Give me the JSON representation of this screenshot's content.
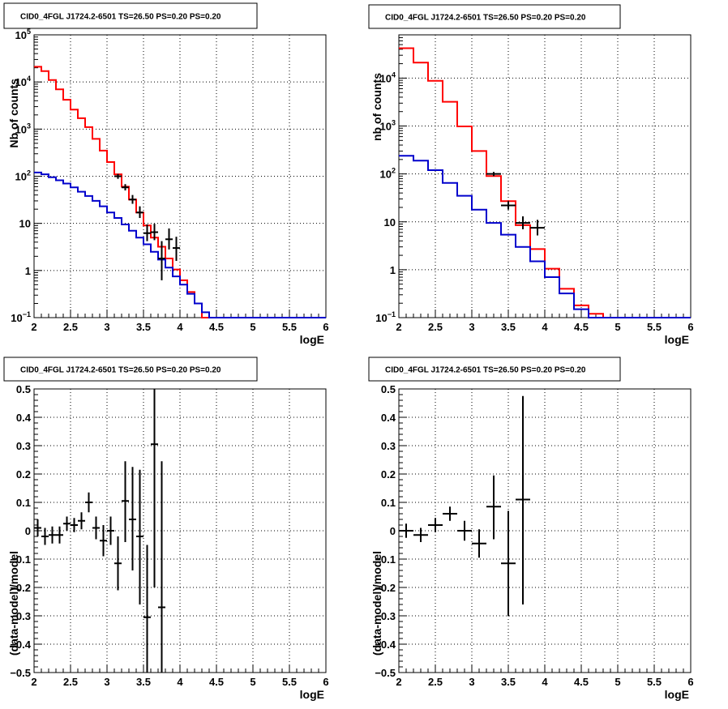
{
  "colors": {
    "data": "#000000",
    "model": "#ff0000",
    "component": "#0000cc",
    "grid": "#000000"
  },
  "chart_data": [
    {
      "type": "line",
      "title": "CID0_4FGL J1724.2-6501 TS=26.50 PS=0.20 PS=0.20",
      "xlabel": "logE",
      "ylabel": "Nb of counts",
      "scale_y": "log",
      "xlim": [
        2,
        6
      ],
      "ylim": [
        0.1,
        100000
      ],
      "grid": true,
      "x_ticks": [
        "2",
        "2.5",
        "3",
        "3.5",
        "4",
        "4.5",
        "5",
        "5.5",
        "6"
      ],
      "y_ticks": [
        {
          "v": 0.1,
          "base": "10",
          "exp": "−1"
        },
        {
          "v": 1,
          "base": "1",
          "exp": ""
        },
        {
          "v": 10,
          "base": "10",
          "exp": ""
        },
        {
          "v": 100,
          "base": "10",
          "exp": "2"
        },
        {
          "v": 1000,
          "base": "10",
          "exp": "3"
        },
        {
          "v": 10000,
          "base": "10",
          "exp": "4"
        },
        {
          "v": 100000,
          "base": "10",
          "exp": "5"
        }
      ],
      "bin_width": 0.1,
      "series": [
        {
          "role": "model",
          "color": "#ff0000",
          "bin_start": 2.0,
          "values": [
            21000,
            17000,
            11000,
            7000,
            4200,
            2600,
            1700,
            1100,
            620,
            350,
            200,
            110,
            60,
            32,
            17,
            9,
            5,
            3.2,
            1.8,
            1.05,
            0.62,
            0.35,
            0.2,
            0.1,
            0.1,
            0.1,
            0.1,
            0.1,
            0.1,
            0.1,
            0.1,
            0.1,
            0.1,
            0.1,
            0.1,
            0.1,
            0.1,
            0.1,
            0.1,
            0.1
          ]
        },
        {
          "role": "component",
          "color": "#0000cc",
          "bin_start": 2.0,
          "values": [
            120,
            110,
            95,
            82,
            70,
            58,
            47,
            38,
            30,
            23,
            17,
            13,
            9.5,
            7.0,
            5.0,
            3.6,
            2.5,
            1.7,
            1.15,
            0.75,
            0.5,
            0.32,
            0.2,
            0.13,
            0.1,
            0.1,
            0.1,
            0.1,
            0.1,
            0.1,
            0.1,
            0.1,
            0.1,
            0.1,
            0.1,
            0.1,
            0.1,
            0.1,
            0.1,
            0.1
          ]
        }
      ],
      "points": [
        {
          "x": 3.15,
          "y": 100,
          "lo": 88,
          "hi": 112,
          "xerr": 0.05
        },
        {
          "x": 3.25,
          "y": 58,
          "lo": 50,
          "hi": 68,
          "xerr": 0.05
        },
        {
          "x": 3.35,
          "y": 32,
          "lo": 26,
          "hi": 40,
          "xerr": 0.05
        },
        {
          "x": 3.45,
          "y": 17,
          "lo": 13,
          "hi": 23,
          "xerr": 0.05
        },
        {
          "x": 3.55,
          "y": 6.2,
          "lo": 4.2,
          "hi": 9.5,
          "xerr": 0.05
        },
        {
          "x": 3.65,
          "y": 6.5,
          "lo": 4.4,
          "hi": 9.8,
          "xerr": 0.05
        },
        {
          "x": 3.75,
          "y": 1.8,
          "lo": 0.62,
          "hi": 4.2,
          "xerr": 0.05
        },
        {
          "x": 3.85,
          "y": 4.6,
          "lo": 2.8,
          "hi": 7.8,
          "xerr": 0.05
        },
        {
          "x": 3.95,
          "y": 3.0,
          "lo": 1.6,
          "hi": 5.2,
          "xerr": 0.05
        }
      ]
    },
    {
      "type": "line",
      "title": "CID0_4FGL J1724.2-6501 TS=26.50 PS=0.20 PS=0.20",
      "xlabel": "logE",
      "ylabel": "nb of counts",
      "scale_y": "log",
      "xlim": [
        2,
        6
      ],
      "ylim": [
        0.1,
        80000
      ],
      "grid": true,
      "x_ticks": [
        "2",
        "2.5",
        "3",
        "3.5",
        "4",
        "4.5",
        "5",
        "5.5",
        "6"
      ],
      "y_ticks": [
        {
          "v": 0.1,
          "base": "10",
          "exp": "−1"
        },
        {
          "v": 1,
          "base": "1",
          "exp": ""
        },
        {
          "v": 10,
          "base": "10",
          "exp": ""
        },
        {
          "v": 100,
          "base": "10",
          "exp": "2"
        },
        {
          "v": 1000,
          "base": "10",
          "exp": "3"
        },
        {
          "v": 10000,
          "base": "10",
          "exp": "4"
        }
      ],
      "bin_width": 0.2,
      "series": [
        {
          "role": "model",
          "color": "#ff0000",
          "bin_start": 2.0,
          "values": [
            42000,
            21000,
            8800,
            3200,
            980,
            300,
            90,
            27,
            8.5,
            2.7,
            1.05,
            0.4,
            0.18,
            0.12,
            0.1,
            0.1,
            0.1,
            0.1,
            0.1,
            0.1
          ]
        },
        {
          "role": "component",
          "color": "#0000cc",
          "bin_start": 2.0,
          "values": [
            240,
            190,
            120,
            65,
            35,
            18,
            9.5,
            5.4,
            3.0,
            1.5,
            0.7,
            0.32,
            0.15,
            0.1,
            0.1,
            0.1,
            0.1,
            0.1,
            0.1,
            0.1
          ]
        }
      ],
      "points": [
        {
          "x": 3.3,
          "y": 100,
          "lo": 90,
          "hi": 110,
          "xerr": 0.1
        },
        {
          "x": 3.5,
          "y": 22,
          "lo": 18,
          "hi": 27,
          "xerr": 0.1
        },
        {
          "x": 3.7,
          "y": 9.5,
          "lo": 7,
          "hi": 13,
          "xerr": 0.1
        },
        {
          "x": 3.9,
          "y": 7.5,
          "lo": 5.2,
          "hi": 11,
          "xerr": 0.1
        }
      ]
    },
    {
      "type": "scatter",
      "title": "CID0_4FGL J1724.2-6501 TS=26.50 PS=0.20 PS=0.20",
      "xlabel": "logE",
      "ylabel": "(data-model)/model",
      "scale_y": "linear",
      "xlim": [
        2,
        6
      ],
      "ylim": [
        -0.5,
        0.5
      ],
      "grid": true,
      "x_ticks": [
        "2",
        "2.5",
        "3",
        "3.5",
        "4",
        "4.5",
        "5",
        "5.5",
        "6"
      ],
      "y_ticks": [
        {
          "v": -0.5,
          "label": "−0.5"
        },
        {
          "v": -0.4,
          "label": "−0.4"
        },
        {
          "v": -0.3,
          "label": "−0.3"
        },
        {
          "v": -0.2,
          "label": "−0.2"
        },
        {
          "v": -0.1,
          "label": "−0.1"
        },
        {
          "v": 0,
          "label": "0"
        },
        {
          "v": 0.1,
          "label": "0.1"
        },
        {
          "v": 0.2,
          "label": "0.2"
        },
        {
          "v": 0.3,
          "label": "0.3"
        },
        {
          "v": 0.4,
          "label": "0.4"
        },
        {
          "v": 0.5,
          "label": "0.5"
        }
      ],
      "points": [
        {
          "x": 2.05,
          "y": 0.01,
          "lo": -0.02,
          "hi": 0.04,
          "xerr": 0.05
        },
        {
          "x": 2.15,
          "y": -0.02,
          "lo": -0.05,
          "hi": 0.01,
          "xerr": 0.05
        },
        {
          "x": 2.25,
          "y": -0.015,
          "lo": -0.045,
          "hi": 0.015,
          "xerr": 0.05
        },
        {
          "x": 2.35,
          "y": -0.015,
          "lo": -0.045,
          "hi": 0.015,
          "xerr": 0.05
        },
        {
          "x": 2.45,
          "y": 0.025,
          "lo": 0.0,
          "hi": 0.05,
          "xerr": 0.05
        },
        {
          "x": 2.55,
          "y": 0.02,
          "lo": -0.005,
          "hi": 0.045,
          "xerr": 0.05
        },
        {
          "x": 2.65,
          "y": 0.035,
          "lo": 0.005,
          "hi": 0.065,
          "xerr": 0.05
        },
        {
          "x": 2.75,
          "y": 0.1,
          "lo": 0.065,
          "hi": 0.135,
          "xerr": 0.05
        },
        {
          "x": 2.85,
          "y": 0.01,
          "lo": -0.03,
          "hi": 0.05,
          "xerr": 0.05
        },
        {
          "x": 2.95,
          "y": -0.035,
          "lo": -0.09,
          "hi": 0.02,
          "xerr": 0.05
        },
        {
          "x": 3.05,
          "y": 0.0,
          "lo": -0.05,
          "hi": 0.05,
          "xerr": 0.05
        },
        {
          "x": 3.15,
          "y": -0.115,
          "lo": -0.21,
          "hi": -0.02,
          "xerr": 0.05
        },
        {
          "x": 3.25,
          "y": 0.105,
          "lo": -0.04,
          "hi": 0.245,
          "xerr": 0.05
        },
        {
          "x": 3.35,
          "y": 0.04,
          "lo": -0.14,
          "hi": 0.225,
          "xerr": 0.05
        },
        {
          "x": 3.45,
          "y": -0.02,
          "lo": -0.26,
          "hi": 0.215,
          "xerr": 0.05
        },
        {
          "x": 3.55,
          "y": -0.305,
          "lo": -0.5,
          "hi": -0.05,
          "xerr": 0.05
        },
        {
          "x": 3.65,
          "y": 0.305,
          "lo": -0.2,
          "hi": 0.5,
          "xerr": 0.05
        },
        {
          "x": 3.75,
          "y": -0.27,
          "lo": -0.5,
          "hi": 0.245,
          "xerr": 0.05
        }
      ]
    },
    {
      "type": "scatter",
      "title": "CID0_4FGL J1724.2-6501 TS=26.50 PS=0.20 PS=0.20",
      "xlabel": "logE",
      "ylabel": "(data-model)/model",
      "scale_y": "linear",
      "xlim": [
        2,
        6
      ],
      "ylim": [
        -0.5,
        0.5
      ],
      "grid": true,
      "x_ticks": [
        "2",
        "2.5",
        "3",
        "3.5",
        "4",
        "4.5",
        "5",
        "5.5",
        "6"
      ],
      "y_ticks": [
        {
          "v": -0.5,
          "label": "−0.5"
        },
        {
          "v": -0.4,
          "label": "−0.4"
        },
        {
          "v": -0.3,
          "label": "−0.3"
        },
        {
          "v": -0.2,
          "label": "−0.2"
        },
        {
          "v": -0.1,
          "label": "−0.1"
        },
        {
          "v": 0,
          "label": "0"
        },
        {
          "v": 0.1,
          "label": "0.1"
        },
        {
          "v": 0.2,
          "label": "0.2"
        },
        {
          "v": 0.3,
          "label": "0.3"
        },
        {
          "v": 0.4,
          "label": "0.4"
        },
        {
          "v": 0.5,
          "label": "0.5"
        }
      ],
      "points": [
        {
          "x": 2.1,
          "y": 0.0,
          "lo": -0.025,
          "hi": 0.025,
          "xerr": 0.1
        },
        {
          "x": 2.3,
          "y": -0.015,
          "lo": -0.04,
          "hi": 0.01,
          "xerr": 0.1
        },
        {
          "x": 2.5,
          "y": 0.02,
          "lo": -0.005,
          "hi": 0.045,
          "xerr": 0.1
        },
        {
          "x": 2.7,
          "y": 0.06,
          "lo": 0.035,
          "hi": 0.085,
          "xerr": 0.1
        },
        {
          "x": 2.9,
          "y": 0.0,
          "lo": -0.035,
          "hi": 0.035,
          "xerr": 0.1
        },
        {
          "x": 3.1,
          "y": -0.045,
          "lo": -0.095,
          "hi": 0.005,
          "xerr": 0.1
        },
        {
          "x": 3.3,
          "y": 0.085,
          "lo": -0.03,
          "hi": 0.195,
          "xerr": 0.1
        },
        {
          "x": 3.5,
          "y": -0.115,
          "lo": -0.3,
          "hi": 0.07,
          "xerr": 0.1
        },
        {
          "x": 3.7,
          "y": 0.11,
          "lo": -0.26,
          "hi": 0.475,
          "xerr": 0.1
        }
      ]
    }
  ]
}
